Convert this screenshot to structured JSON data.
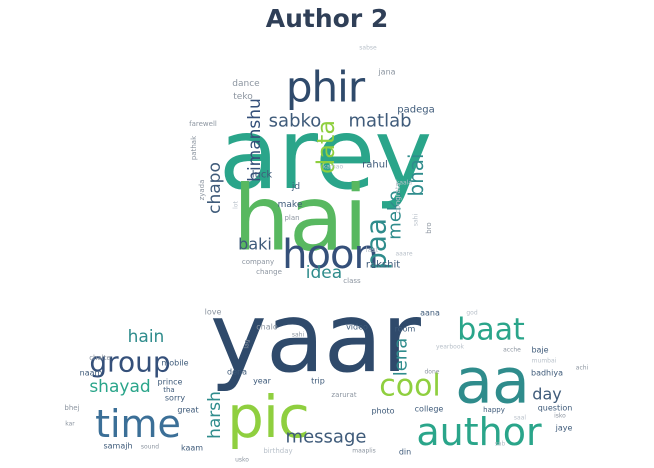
{
  "title": "Author 2",
  "palette": {
    "dark_navy": "#2f4a6b",
    "navy": "#35507a",
    "slate": "#3f5b7a",
    "blue": "#3b6f97",
    "teal": "#2f8c8c",
    "teal_green": "#2aa58a",
    "green": "#58b860",
    "lime": "#8fcf3f",
    "yellow_green": "#b9d94a",
    "gray": "#8c95a0",
    "light_gray": "#b9c1ca"
  },
  "word_clouds": [
    {
      "name": "upper-cloud",
      "words": [
        {
          "text": "arey",
          "color": "teal_green"
        },
        {
          "text": "hai",
          "color": "green"
        },
        {
          "text": "phir",
          "color": "dark_navy"
        },
        {
          "text": "hoon",
          "color": "navy"
        },
        {
          "text": "sabko",
          "color": "slate"
        },
        {
          "text": "matlab",
          "color": "slate"
        },
        {
          "text": "himanshu",
          "color": "navy"
        },
        {
          "text": "data",
          "color": "lime"
        },
        {
          "text": "paa",
          "color": "teal"
        },
        {
          "text": "bhai",
          "color": "teal"
        },
        {
          "text": "meko",
          "color": "teal"
        },
        {
          "text": "chapo",
          "color": "slate"
        },
        {
          "text": "baki",
          "color": "slate"
        },
        {
          "text": "idea",
          "color": "teal"
        },
        {
          "text": "rakshit",
          "color": "slate"
        },
        {
          "text": "luck",
          "color": "slate"
        },
        {
          "text": "rahul",
          "color": "slate"
        },
        {
          "text": "padega",
          "color": "slate"
        },
        {
          "text": "dance",
          "color": "gray"
        },
        {
          "text": "teko",
          "color": "gray"
        },
        {
          "text": "jana",
          "color": "gray"
        },
        {
          "text": "farewell",
          "color": "gray"
        },
        {
          "text": "pathak",
          "color": "gray"
        },
        {
          "text": "zyada",
          "color": "gray"
        },
        {
          "text": "make",
          "color": "slate"
        },
        {
          "text": "plan",
          "color": "gray"
        },
        {
          "text": "jd",
          "color": "slate"
        },
        {
          "text": "congrats",
          "color": "light_gray"
        },
        {
          "text": "bro",
          "color": "gray"
        },
        {
          "text": "company",
          "color": "gray"
        },
        {
          "text": "change",
          "color": "gray"
        },
        {
          "text": "class",
          "color": "gray"
        },
        {
          "text": "last",
          "color": "light_gray"
        },
        {
          "text": "aaare",
          "color": "light_gray"
        },
        {
          "text": "kaala",
          "color": "light_gray"
        },
        {
          "text": "kamao",
          "color": "light_gray"
        },
        {
          "text": "sahi",
          "color": "light_gray"
        },
        {
          "text": "sabse",
          "color": "light_gray"
        },
        {
          "text": "lot",
          "color": "light_gray"
        }
      ]
    },
    {
      "name": "lower-cloud",
      "words": [
        {
          "text": "yaar",
          "color": "dark_navy"
        },
        {
          "text": "aa",
          "color": "teal"
        },
        {
          "text": "pic",
          "color": "lime"
        },
        {
          "text": "author",
          "color": "teal_green"
        },
        {
          "text": "time",
          "color": "blue"
        },
        {
          "text": "group",
          "color": "navy"
        },
        {
          "text": "baat",
          "color": "teal_green"
        },
        {
          "text": "cool",
          "color": "lime"
        },
        {
          "text": "shayad",
          "color": "teal_green"
        },
        {
          "text": "hain",
          "color": "teal"
        },
        {
          "text": "harsh",
          "color": "teal"
        },
        {
          "text": "message",
          "color": "slate"
        },
        {
          "text": "lena",
          "color": "teal"
        },
        {
          "text": "day",
          "color": "slate"
        },
        {
          "text": "love",
          "color": "gray"
        },
        {
          "text": "chalo",
          "color": "gray"
        },
        {
          "text": "video",
          "color": "slate"
        },
        {
          "text": "room",
          "color": "slate"
        },
        {
          "text": "aana",
          "color": "slate"
        },
        {
          "text": "dena",
          "color": "slate"
        },
        {
          "text": "mobile",
          "color": "slate"
        },
        {
          "text": "prince",
          "color": "slate"
        },
        {
          "text": "year",
          "color": "slate"
        },
        {
          "text": "trip",
          "color": "slate"
        },
        {
          "text": "photo",
          "color": "slate"
        },
        {
          "text": "college",
          "color": "slate"
        },
        {
          "text": "baje",
          "color": "slate"
        },
        {
          "text": "badhiya",
          "color": "slate"
        },
        {
          "text": "question",
          "color": "slate"
        },
        {
          "text": "naam",
          "color": "slate"
        },
        {
          "text": "sorry",
          "color": "slate"
        },
        {
          "text": "great",
          "color": "slate"
        },
        {
          "text": "samajh",
          "color": "slate"
        },
        {
          "text": "kaam",
          "color": "slate"
        },
        {
          "text": "happy",
          "color": "slate"
        },
        {
          "text": "birthday",
          "color": "light_gray"
        },
        {
          "text": "din",
          "color": "slate"
        },
        {
          "text": "jaye",
          "color": "slate"
        },
        {
          "text": "chalte",
          "color": "gray"
        },
        {
          "text": "bhej",
          "color": "gray"
        },
        {
          "text": "kar",
          "color": "gray"
        },
        {
          "text": "tha",
          "color": "slate"
        },
        {
          "text": "zarurat",
          "color": "gray"
        },
        {
          "text": "yearbook",
          "color": "light_gray"
        },
        {
          "text": "mumbai",
          "color": "light_gray"
        },
        {
          "text": "acche",
          "color": "gray"
        },
        {
          "text": "isko",
          "color": "gray"
        },
        {
          "text": "achi",
          "color": "gray"
        },
        {
          "text": "god",
          "color": "light_gray"
        },
        {
          "text": "maaplis",
          "color": "gray"
        },
        {
          "text": "sound",
          "color": "gray"
        },
        {
          "text": "usko",
          "color": "gray"
        },
        {
          "text": "sahi",
          "color": "gray"
        },
        {
          "text": "lag",
          "color": "gray"
        },
        {
          "text": "done",
          "color": "gray"
        },
        {
          "text": "saal",
          "color": "light_gray"
        },
        {
          "text": "sab",
          "color": "light_gray"
        }
      ]
    }
  ]
}
